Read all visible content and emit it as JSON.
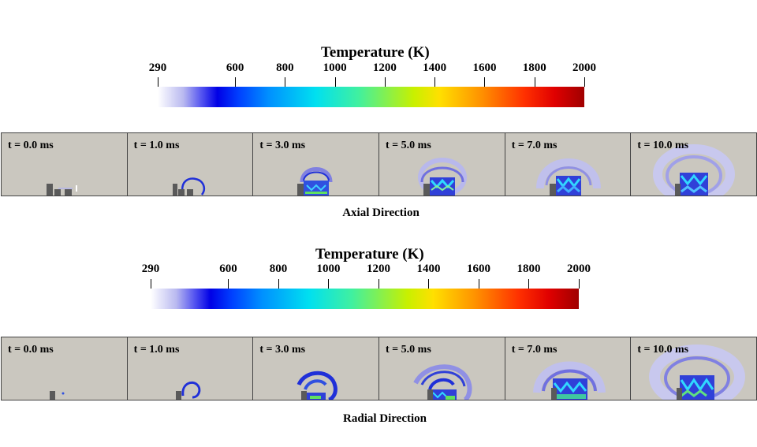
{
  "colorbar": {
    "title": "Temperature (K)",
    "min": 290,
    "max": 2000,
    "ticks": [
      "290",
      "600",
      "800",
      "1000",
      "1200",
      "1400",
      "1600",
      "1800",
      "2000"
    ]
  },
  "panels": {
    "axial": {
      "caption": "Axial Direction",
      "times": [
        "t = 0.0 ms",
        "t = 1.0 ms",
        "t = 3.0 ms",
        "t = 5.0 ms",
        "t = 7.0 ms",
        "t = 10.0 ms"
      ]
    },
    "radial": {
      "caption": "Radial Direction",
      "times": [
        "t = 0.0 ms",
        "t = 1.0 ms",
        "t = 3.0 ms",
        "t = 5.0 ms",
        "t = 7.0 ms",
        "t = 10.0 ms"
      ]
    }
  },
  "colors": {
    "panel_background": "#cac7bf",
    "hot_core": "#0020d0",
    "plume": "#7a7ae0",
    "halo": "#b8b8e8",
    "electrode": "#5a5a5a"
  }
}
